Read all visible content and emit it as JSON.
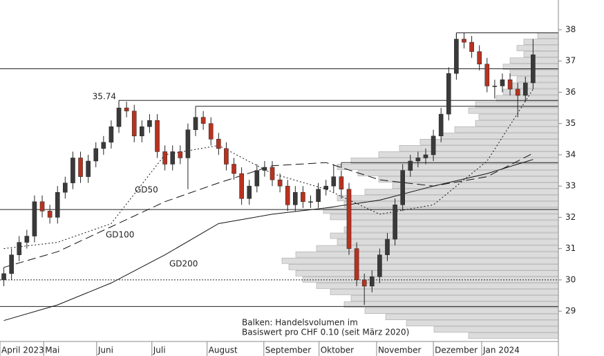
{
  "chart_data": {
    "type": "candlestick",
    "up_color": "#3a3a3a",
    "down_color": "#b8321f",
    "xlim": [
      -0.5,
      72.3
    ],
    "xticks": [
      {
        "value": -0.5,
        "label": "April 2023"
      },
      {
        "value": 5.2,
        "label": "Mai"
      },
      {
        "value": 12.1,
        "label": "Juni"
      },
      {
        "value": 19.3,
        "label": "Juli"
      },
      {
        "value": 26.5,
        "label": "August"
      },
      {
        "value": 33.9,
        "label": "September"
      },
      {
        "value": 41.1,
        "label": "Oktober"
      },
      {
        "value": 48.6,
        "label": "November"
      },
      {
        "value": 56.0,
        "label": "Dezember"
      },
      {
        "value": 62.3,
        "label": "Jan 2024"
      }
    ],
    "ylim": [
      28.03,
      38.95
    ],
    "yticks": [
      29,
      30,
      31,
      32,
      33,
      34,
      35,
      36,
      37,
      38
    ],
    "open": [
      30.0,
      30.2,
      30.8,
      31.2,
      31.4,
      32.5,
      32.2,
      32.0,
      32.8,
      33.1,
      33.9,
      33.3,
      33.8,
      34.2,
      34.4,
      34.9,
      35.5,
      35.4,
      34.6,
      34.9,
      35.1,
      34.1,
      33.7,
      34.1,
      33.9,
      34.8,
      35.2,
      35.0,
      34.5,
      34.2,
      33.7,
      33.4,
      32.6,
      33.0,
      33.5,
      33.6,
      33.2,
      33.0,
      32.4,
      32.8,
      32.5,
      32.5,
      32.9,
      33.0,
      33.3,
      32.9,
      31.0,
      30.0,
      29.8,
      30.1,
      30.8,
      31.3,
      32.4,
      33.5,
      33.8,
      33.9,
      34.0,
      34.6,
      35.3,
      36.6,
      37.7,
      37.6,
      37.3,
      36.9,
      36.2,
      36.2,
      36.4,
      36.1,
      35.9,
      36.3
    ],
    "high": [
      30.4,
      31.0,
      31.4,
      31.6,
      32.7,
      32.7,
      32.4,
      33.0,
      33.3,
      34.1,
      34.1,
      34.0,
      34.4,
      34.6,
      35.1,
      35.74,
      35.7,
      35.6,
      35.1,
      35.3,
      35.3,
      34.3,
      34.3,
      34.3,
      35.0,
      35.4,
      35.4,
      35.2,
      34.7,
      34.4,
      33.9,
      33.6,
      33.2,
      33.7,
      33.8,
      33.8,
      33.4,
      33.2,
      33.0,
      33.0,
      32.7,
      33.1,
      33.2,
      33.7,
      33.5,
      33.1,
      31.2,
      30.2,
      30.3,
      31.0,
      31.5,
      32.6,
      33.7,
      34.0,
      34.1,
      34.2,
      34.8,
      35.5,
      36.8,
      37.9,
      37.9,
      37.8,
      37.5,
      37.1,
      36.4,
      36.6,
      36.6,
      36.3,
      36.5,
      37.7
    ],
    "low": [
      29.8,
      30.0,
      30.6,
      31.0,
      31.2,
      32.0,
      31.8,
      31.8,
      32.6,
      32.9,
      33.1,
      33.1,
      33.6,
      34.0,
      34.2,
      34.7,
      35.2,
      34.4,
      34.4,
      34.7,
      33.9,
      33.5,
      33.5,
      33.7,
      32.9,
      34.6,
      34.8,
      34.3,
      34.0,
      33.5,
      33.2,
      32.4,
      32.4,
      32.8,
      33.3,
      33.0,
      32.8,
      32.2,
      32.2,
      32.3,
      32.3,
      32.3,
      32.7,
      32.8,
      32.6,
      30.8,
      29.8,
      29.2,
      29.6,
      29.9,
      30.6,
      31.1,
      32.2,
      33.3,
      33.6,
      33.7,
      33.8,
      34.4,
      35.1,
      36.4,
      37.4,
      37.1,
      36.7,
      36.0,
      35.8,
      36.0,
      35.9,
      35.2,
      35.7,
      36.1
    ],
    "close": [
      30.2,
      30.8,
      31.2,
      31.4,
      32.5,
      32.2,
      32.0,
      32.8,
      33.1,
      33.9,
      33.3,
      33.8,
      34.2,
      34.4,
      34.9,
      35.5,
      35.4,
      34.6,
      34.9,
      35.1,
      34.1,
      33.7,
      34.1,
      33.9,
      34.8,
      35.2,
      35.0,
      34.5,
      34.2,
      33.7,
      33.4,
      32.6,
      33.0,
      33.5,
      33.6,
      33.2,
      33.0,
      32.4,
      32.8,
      32.5,
      32.5,
      32.9,
      33.0,
      33.3,
      32.9,
      31.0,
      30.0,
      29.8,
      30.1,
      30.8,
      31.3,
      32.4,
      33.5,
      33.8,
      33.9,
      34.0,
      34.6,
      35.3,
      36.6,
      37.7,
      37.6,
      37.3,
      36.9,
      36.2,
      36.2,
      36.4,
      36.1,
      35.9,
      36.3,
      37.2
    ],
    "moving_averages": [
      {
        "name": "GD50",
        "dash": "2,3",
        "x": [
          0,
          7,
          14,
          21,
          28,
          35,
          42,
          49,
          56,
          63,
          69
        ],
        "values": [
          31.0,
          31.2,
          31.8,
          34.0,
          34.3,
          33.4,
          32.9,
          32.1,
          32.4,
          33.8,
          36.1
        ]
      },
      {
        "name": "GD100",
        "dash": "12,6",
        "x": [
          0,
          7,
          14,
          21,
          28,
          35,
          42,
          49,
          56,
          63,
          69
        ],
        "values": [
          30.4,
          30.9,
          31.7,
          32.5,
          33.1,
          33.65,
          33.75,
          33.2,
          33.0,
          33.3,
          34.05
        ]
      },
      {
        "name": "GD200",
        "dash": "none",
        "x": [
          0,
          7,
          14,
          21,
          28,
          35,
          42,
          49,
          56,
          63,
          69
        ],
        "values": [
          28.7,
          29.2,
          29.9,
          30.8,
          31.8,
          32.1,
          32.3,
          32.55,
          33.0,
          33.4,
          33.85
        ]
      }
    ],
    "levels": [
      {
        "value": 37.9,
        "from": 59,
        "style": "solid"
      },
      {
        "value": 36.75,
        "from": -0.5,
        "style": "solid"
      },
      {
        "value": 35.74,
        "from": 15,
        "style": "solid",
        "label": "35.74"
      },
      {
        "value": 35.55,
        "from": 25,
        "style": "solid"
      },
      {
        "value": 33.75,
        "from": 44,
        "style": "solid"
      },
      {
        "value": 32.25,
        "from": -0.5,
        "style": "solid"
      },
      {
        "value": 30.0,
        "from": -0.5,
        "style": "dotted"
      },
      {
        "value": 29.15,
        "from": -0.5,
        "style": "solid"
      }
    ],
    "volume_profile": {
      "xlim": [
        0,
        808
      ],
      "levels": [
        37.8,
        37.6,
        37.4,
        37.2,
        37.0,
        36.8,
        36.6,
        36.4,
        36.2,
        36.0,
        35.8,
        35.6,
        35.4,
        35.2,
        35.0,
        34.8,
        34.6,
        34.4,
        34.2,
        34.0,
        33.8,
        33.6,
        33.4,
        33.2,
        33.0,
        32.8,
        32.6,
        32.4,
        32.2,
        32.0,
        31.8,
        31.6,
        31.4,
        31.2,
        31.0,
        30.8,
        30.6,
        30.4,
        30.2,
        30.0,
        29.8,
        29.6,
        29.4,
        29.2,
        29.0,
        28.8,
        28.6,
        28.4,
        28.2
      ],
      "values": [
        30,
        50,
        60,
        50,
        70,
        80,
        70,
        60,
        70,
        80,
        90,
        120,
        130,
        115,
        120,
        150,
        170,
        200,
        230,
        260,
        300,
        320,
        290,
        260,
        240,
        280,
        320,
        310,
        340,
        330,
        300,
        310,
        330,
        320,
        350,
        380,
        400,
        390,
        380,
        370,
        350,
        330,
        300,
        310,
        280,
        250,
        220,
        180,
        130
      ]
    },
    "annotation": [
      "Balken: Handelsvolumen im",
      "Basiswert pro CHF 0.10 (seit März 2020)"
    ]
  }
}
